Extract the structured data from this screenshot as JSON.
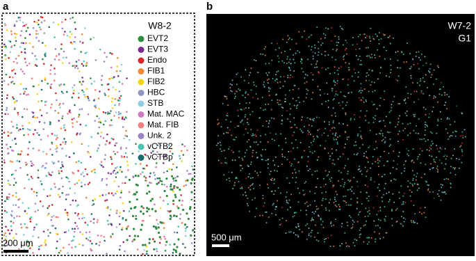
{
  "panel_a": {
    "label": "a",
    "title": "W8-2",
    "scale_bar": "200 μm",
    "legend": [
      {
        "name": "EVT2",
        "color": "#2e8b3e"
      },
      {
        "name": "EVT3",
        "color": "#7b2d8e"
      },
      {
        "name": "Endo",
        "color": "#d62728"
      },
      {
        "name": "FIB1",
        "color": "#f08a3c"
      },
      {
        "name": "FIB2",
        "color": "#f2d51a"
      },
      {
        "name": "HBC",
        "color": "#8f96c8"
      },
      {
        "name": "STB",
        "color": "#8fcde0"
      },
      {
        "name": "Mat. MAC",
        "color": "#d07bc0"
      },
      {
        "name": "Mat. FIB",
        "color": "#f08080"
      },
      {
        "name": "Unk. 2",
        "color": "#9b84c4"
      },
      {
        "name": "vCTB2",
        "color": "#4cc3b0"
      },
      {
        "name": "vCTBp",
        "color": "#1a6e6e"
      }
    ]
  },
  "panel_b": {
    "label": "b",
    "title": "W7-2",
    "subtitle": "G1",
    "scale_bar": "500 μm"
  }
}
